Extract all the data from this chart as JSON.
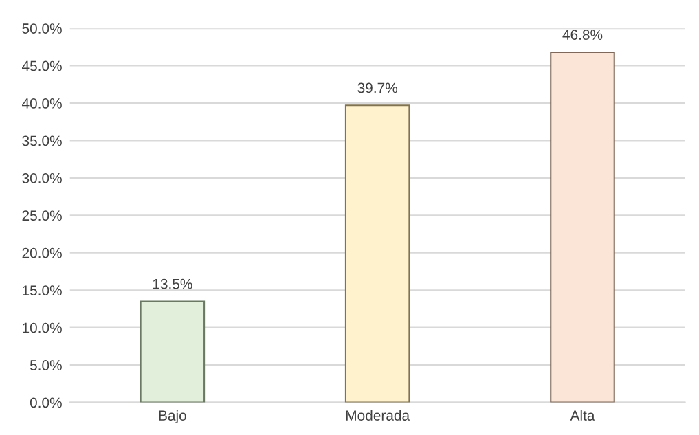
{
  "chart_data": {
    "type": "bar",
    "categories": [
      "Bajo",
      "Moderada",
      "Alta"
    ],
    "values": [
      13.5,
      39.7,
      46.8
    ],
    "colors": [
      "#e2efda",
      "#fff2cc",
      "#fbe5d6"
    ],
    "value_labels": [
      "13.5%",
      "39.7%",
      "46.8%"
    ],
    "ylim": [
      0,
      50
    ],
    "yticks": [
      {
        "value": 0,
        "label": "0.0%"
      },
      {
        "value": 5,
        "label": "5.0%"
      },
      {
        "value": 10,
        "label": "10.0%"
      },
      {
        "value": 15,
        "label": "15.0%"
      },
      {
        "value": 20,
        "label": "20.0%"
      },
      {
        "value": 25,
        "label": "25.0%"
      },
      {
        "value": 30,
        "label": "30.0%"
      },
      {
        "value": 35,
        "label": "35.0%"
      },
      {
        "value": 40,
        "label": "40.0%"
      },
      {
        "value": 45,
        "label": "45.0%"
      },
      {
        "value": 50,
        "label": "50.0%"
      }
    ],
    "grid": "y"
  }
}
